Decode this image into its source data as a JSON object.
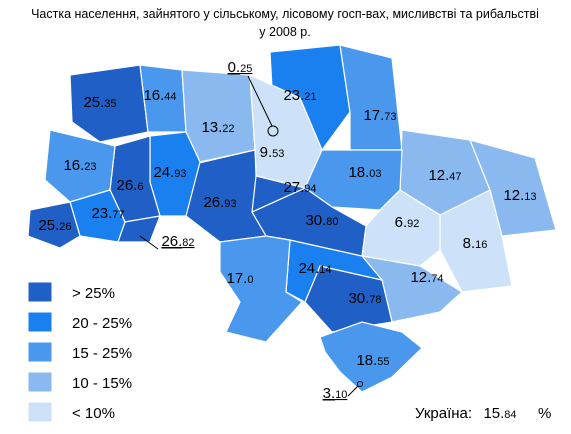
{
  "title": [
    "Частка населення, зайнятого у сільському, лісовому госп-вах, мисливстві та рибальстві",
    "у 2008 р."
  ],
  "legend": [
    {
      "label": "> 25%",
      "color": "#1f5fc6"
    },
    {
      "label": "20 - 25%",
      "color": "#1a80f0"
    },
    {
      "label": "15 - 25%",
      "color": "#4a98ee"
    },
    {
      "label": "10 - 15%",
      "color": "#8ab9f0"
    },
    {
      "label": "< 10%",
      "color": "#cde2f8"
    }
  ],
  "regions": [
    {
      "value": "25.35",
      "color": "#1f5fc6"
    },
    {
      "value": "16.44",
      "color": "#4a98ee"
    },
    {
      "value": "13.22",
      "color": "#8ab9f0"
    },
    {
      "value": "23.21",
      "color": "#1a80f0"
    },
    {
      "value": "9.53",
      "color": "#cde2f8"
    },
    {
      "value": "17.73",
      "color": "#4a98ee"
    },
    {
      "value": "12.47",
      "color": "#8ab9f0"
    },
    {
      "value": "18.03",
      "color": "#4a98ee"
    },
    {
      "value": "12.13",
      "color": "#8ab9f0"
    },
    {
      "value": "8.16",
      "color": "#cde2f8"
    },
    {
      "value": "6.92",
      "color": "#cde2f8"
    },
    {
      "value": "12.74",
      "color": "#8ab9f0"
    },
    {
      "value": "30.78",
      "color": "#1f5fc6"
    },
    {
      "value": "24.14",
      "color": "#1a80f0"
    },
    {
      "value": "30.80",
      "color": "#1f5fc6"
    },
    {
      "value": "27.94",
      "color": "#1f5fc6"
    },
    {
      "value": "26.93",
      "color": "#1f5fc6"
    },
    {
      "value": "24.93",
      "color": "#1a80f0"
    },
    {
      "value": "26.6",
      "color": "#1f5fc6"
    },
    {
      "value": "16.23",
      "color": "#4a98ee"
    },
    {
      "value": "23.77",
      "color": "#1a80f0"
    },
    {
      "value": "25.26",
      "color": "#1f5fc6"
    },
    {
      "value": "26.82",
      "color": "#1f5fc6"
    },
    {
      "value": "17.0",
      "color": "#4a98ee"
    },
    {
      "value": "18.55",
      "color": "#4a98ee"
    },
    {
      "value": "0.25",
      "color": "#cde2f8"
    },
    {
      "value": "3.10",
      "color": "#cde2f8"
    }
  ],
  "total": {
    "label": "Україна:",
    "value": "15.84",
    "unit": "%"
  }
}
